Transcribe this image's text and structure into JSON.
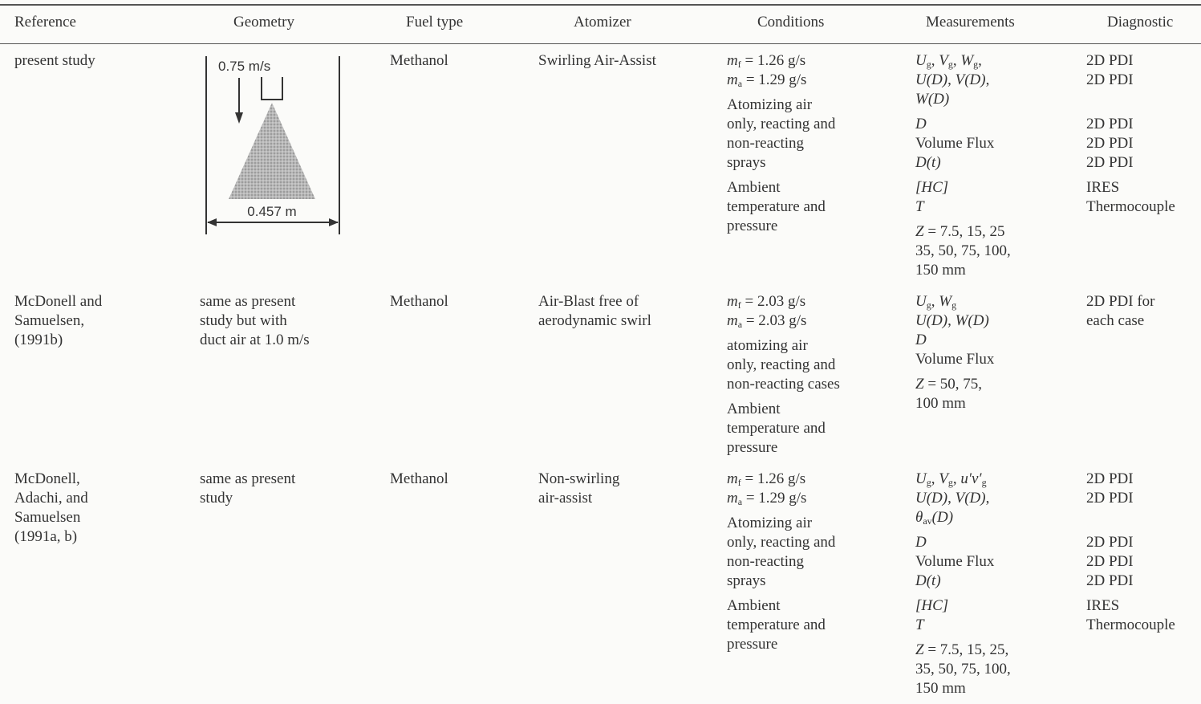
{
  "table": {
    "header": [
      "Reference",
      "Geometry",
      "Fuel type",
      "Atomizer",
      "Conditions",
      "Measurements",
      "Diagnostic"
    ],
    "rows": [
      {
        "reference": [
          "present study"
        ],
        "geometry": {
          "speed": "0.75 m/s",
          "width": "0.457 m"
        },
        "fuel": [
          "Methanol"
        ],
        "atomizer": [
          "Swirling Air-Assist"
        ],
        "conditions": [
          [
            [
              {
                "i": "m",
                "sub": "f"
              },
              " = 1.26 g/s"
            ],
            [
              {
                "i": "m",
                "sub": "a"
              },
              " = 1.29 g/s"
            ]
          ],
          [
            "Atomizing air",
            "only, reacting and",
            "non-reacting",
            "sprays"
          ],
          [
            "Ambient",
            "temperature and",
            "pressure"
          ]
        ],
        "measurements": [
          [
            [
              {
                "i": "U",
                "sub": "g"
              },
              ", ",
              {
                "i": "V",
                "sub": "g"
              },
              ", ",
              {
                "i": "W",
                "sub": "g"
              },
              ","
            ],
            [
              {
                "i": "U(D)"
              },
              ", ",
              {
                "i": "V(D)"
              },
              ","
            ],
            [
              {
                "i": "W(D)"
              }
            ]
          ],
          [
            [
              {
                "i": "D"
              }
            ],
            [
              "Volume Flux"
            ],
            [
              {
                "i": "D(t)"
              }
            ]
          ],
          [
            [
              {
                "i": "[HC]"
              }
            ],
            [
              {
                "i": "T"
              }
            ]
          ],
          [
            [
              {
                "i": "Z"
              },
              " = 7.5, 15, 25"
            ],
            [
              "35, 50, 75, 100,"
            ],
            [
              "150 mm"
            ]
          ]
        ],
        "diagnostic": [
          [
            "2D PDI",
            "2D PDI"
          ],
          [
            "2D PDI",
            "2D PDI",
            "2D PDI"
          ],
          [
            "IRES",
            "Thermocouple"
          ]
        ]
      },
      {
        "reference": [
          "McDonell and",
          "Samuelsen,",
          "(1991b)"
        ],
        "geometry": [
          "same as present",
          "study but with",
          "duct air at 1.0 m/s"
        ],
        "fuel": [
          "Methanol"
        ],
        "atomizer": [
          "Air-Blast free of",
          "aerodynamic swirl"
        ],
        "conditions": [
          [
            [
              {
                "i": "m",
                "sub": "f"
              },
              " = 2.03 g/s"
            ],
            [
              {
                "i": "m",
                "sub": "a"
              },
              " = 2.03 g/s"
            ]
          ],
          [
            "atomizing air",
            "only, reacting and",
            "non-reacting cases"
          ],
          [
            "Ambient",
            "temperature and",
            "pressure"
          ]
        ],
        "measurements": [
          [
            [
              {
                "i": "U",
                "sub": "g"
              },
              ", ",
              {
                "i": "W",
                "sub": "g"
              }
            ],
            [
              {
                "i": "U(D)"
              },
              ", ",
              {
                "i": "W(D)"
              }
            ],
            [
              {
                "i": "D"
              }
            ],
            [
              "Volume Flux"
            ]
          ],
          [
            [
              {
                "i": "Z"
              },
              " = 50, 75,"
            ],
            [
              "100 mm"
            ]
          ]
        ],
        "diagnostic": [
          [
            "2D PDI for",
            "each case"
          ]
        ]
      },
      {
        "reference": [
          "McDonell,",
          "Adachi, and",
          "Samuelsen",
          "(1991a, b)"
        ],
        "geometry": [
          "same as present",
          "study"
        ],
        "fuel": [
          "Methanol"
        ],
        "atomizer": [
          "Non-swirling",
          "air-assist"
        ],
        "conditions": [
          [
            [
              {
                "i": "m",
                "sub": "f"
              },
              " = 1.26 g/s"
            ],
            [
              {
                "i": "m",
                "sub": "a"
              },
              " = 1.29 g/s"
            ]
          ],
          [
            "Atomizing air",
            "only, reacting and",
            "non-reacting",
            "sprays"
          ],
          [
            "Ambient",
            "temperature and",
            "pressure"
          ]
        ],
        "measurements": [
          [
            [
              {
                "i": "U",
                "sub": "g"
              },
              ", ",
              {
                "i": "V",
                "sub": "g"
              },
              ", ",
              {
                "i": "u′v′",
                "sub": "g"
              }
            ],
            [
              {
                "i": "U(D)"
              },
              ", ",
              {
                "i": "V(D)"
              },
              ","
            ],
            [
              {
                "i": "θ",
                "sub": "av"
              },
              {
                "i": "(D)"
              }
            ]
          ],
          [
            [
              {
                "i": "D"
              }
            ],
            [
              "Volume Flux"
            ],
            [
              {
                "i": "D(t)"
              }
            ]
          ],
          [
            [
              {
                "i": "[HC]"
              }
            ],
            [
              {
                "i": "T"
              }
            ]
          ],
          [
            [
              {
                "i": "Z"
              },
              " = 7.5, 15, 25,"
            ],
            [
              "35, 50, 75, 100,"
            ],
            [
              "150 mm"
            ]
          ]
        ],
        "diagnostic": [
          [
            "2D PDI",
            "2D PDI"
          ],
          [
            "2D PDI",
            "2D PDI",
            "2D PDI"
          ],
          [
            "IRES",
            "Thermocouple"
          ]
        ]
      }
    ]
  }
}
